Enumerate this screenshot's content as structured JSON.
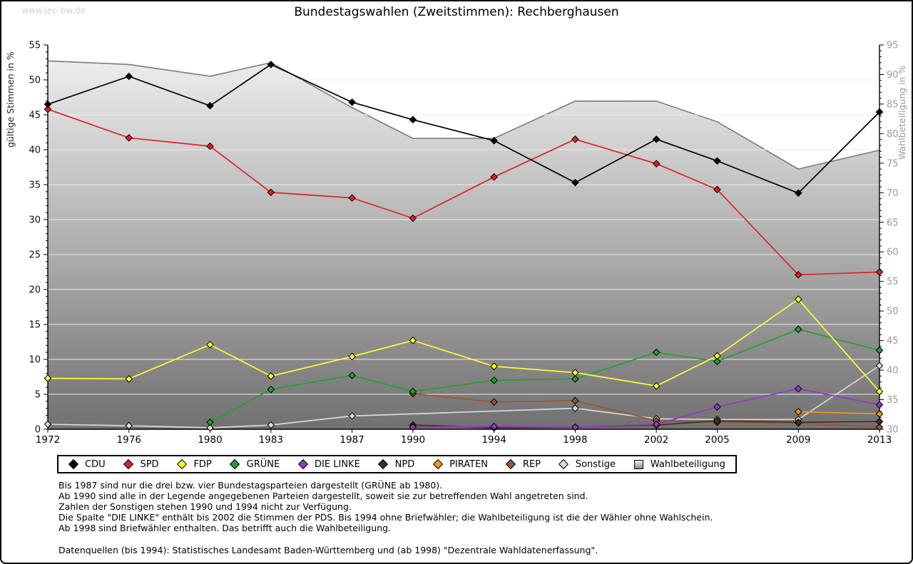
{
  "watermark": "www.leo-bw.de",
  "title": "Bundestagswahlen (Zweitstimmen): Rechberghausen",
  "chart_data": {
    "type": "line",
    "x": [
      1972,
      1976,
      1980,
      1983,
      1987,
      1990,
      1994,
      1998,
      2002,
      2005,
      2009,
      2013
    ],
    "left_axis": {
      "label": "gültige Stimmen in %",
      "min": 0,
      "max": 55,
      "major_step": 5,
      "minor_step": 1
    },
    "right_axis": {
      "label": "Wahlbeteiligung in %",
      "min": 30,
      "max": 95,
      "major_step": 5,
      "minor_step": 1
    },
    "grid": true,
    "legend_position": "bottom",
    "series": [
      {
        "name": "CDU",
        "color": "#000000",
        "marker": "diamond",
        "axis": "left",
        "values": [
          46.5,
          50.5,
          46.3,
          52.2,
          46.8,
          44.3,
          41.3,
          35.3,
          41.5,
          38.4,
          33.8,
          45.4
        ]
      },
      {
        "name": "SPD",
        "color": "#e02222",
        "marker": "diamond",
        "axis": "left",
        "values": [
          45.8,
          41.7,
          40.5,
          33.9,
          33.1,
          30.2,
          36.1,
          41.5,
          38.0,
          34.3,
          22.1,
          22.5
        ]
      },
      {
        "name": "FDP",
        "color": "#ffff33",
        "marker": "diamond",
        "axis": "left",
        "values": [
          7.3,
          7.2,
          12.1,
          7.6,
          10.4,
          12.7,
          9.0,
          8.1,
          6.2,
          10.5,
          18.6,
          5.4
        ]
      },
      {
        "name": "GRÜNE",
        "color": "#21a12c",
        "marker": "diamond",
        "axis": "left",
        "values": [
          null,
          null,
          1.0,
          5.7,
          7.7,
          5.4,
          7.0,
          7.2,
          11.0,
          9.7,
          14.3,
          11.3
        ]
      },
      {
        "name": "DIE LINKE",
        "color": "#9933cc",
        "marker": "diamond",
        "axis": "left",
        "values": [
          null,
          null,
          null,
          null,
          null,
          0.3,
          0.4,
          0.3,
          0.7,
          3.2,
          5.8,
          3.5
        ]
      },
      {
        "name": "NPD",
        "color": "#47301b",
        "marker": "diamond",
        "axis": "left",
        "values": [
          null,
          null,
          null,
          null,
          null,
          0.6,
          0.2,
          0.3,
          0.6,
          1.2,
          1.0,
          1.1
        ]
      },
      {
        "name": "PIRATEN",
        "color": "#f7941d",
        "marker": "diamond",
        "axis": "left",
        "values": [
          null,
          null,
          null,
          null,
          null,
          null,
          null,
          null,
          null,
          null,
          2.5,
          2.2
        ]
      },
      {
        "name": "REP",
        "color": "#a0522d",
        "marker": "diamond",
        "axis": "left",
        "values": [
          null,
          null,
          null,
          null,
          null,
          5.1,
          3.9,
          4.1,
          1.2,
          1.0,
          0.9,
          0.3
        ]
      },
      {
        "name": "Sonstige",
        "color": "#d9d9d9",
        "marker": "diamond",
        "axis": "left",
        "values": [
          0.7,
          0.5,
          0.2,
          0.6,
          1.9,
          null,
          null,
          3.0,
          1.5,
          1.4,
          1.4,
          9.1
        ]
      },
      {
        "name": "Wahlbeteiligung",
        "color": "#7b7b7b",
        "marker": "square",
        "axis": "right",
        "type": "area",
        "values": [
          92.3,
          91.7,
          89.7,
          92.0,
          84.4,
          79.2,
          79.2,
          85.5,
          85.5,
          82.0,
          74.0,
          77.2
        ]
      }
    ]
  },
  "footnotes": [
    "Bis 1987 sind nur die drei bzw. vier Bundestagsparteien dargestellt (GRÜNE ab 1980).",
    "Ab 1990 sind alle in der Legende angegebenen Parteien dargestellt, soweit sie zur betreffenden Wahl angetreten sind.",
    "Zahlen der Sonstigen stehen 1990 und 1994 nicht zur Verfügung.",
    "Die Spalte \"DIE LINKE\" enthält bis 2002 die Stimmen der PDS. Bis 1994 ohne Briefwähler; die Wahlbeteiligung ist die der Wähler ohne Wahlschein.",
    "Ab 1998 sind Briefwähler enthalten. Das betrifft auch die Wahlbeteiligung."
  ],
  "source_line": "Datenquellen (bis 1994): Statistisches Landesamt Baden-Württemberg und (ab 1998) \"Dezentrale Wahldatenerfassung\"."
}
